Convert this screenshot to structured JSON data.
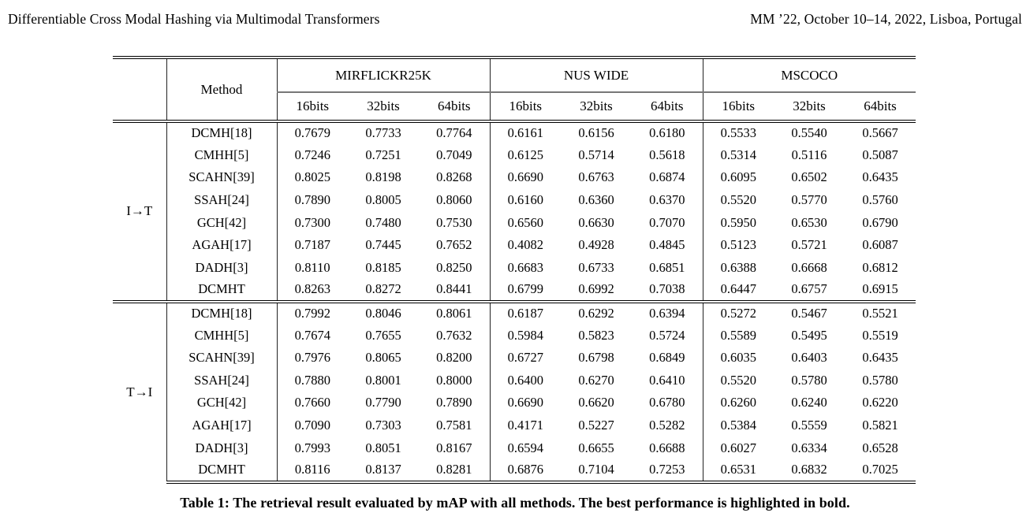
{
  "page_header": {
    "title_left": "Differentiable Cross Modal Hashing via Multimodal Transformers",
    "title_right": "MM ’22, October 10–14, 2022, Lisboa, Portugal"
  },
  "table": {
    "method_header": "Method",
    "datasets": [
      "MIRFLICKR25K",
      "NUS WIDE",
      "MSCOCO"
    ],
    "bit_labels": [
      "16bits",
      "32bits",
      "64bits"
    ],
    "sections": [
      {
        "label": "I→T",
        "rows": [
          {
            "method": "DCMH[18]",
            "values": [
              "0.7679",
              "0.7733",
              "0.7764",
              "0.6161",
              "0.6156",
              "0.6180",
              "0.5533",
              "0.5540",
              "0.5667"
            ],
            "bold": []
          },
          {
            "method": "CMHH[5]",
            "values": [
              "0.7246",
              "0.7251",
              "0.7049",
              "0.6125",
              "0.5714",
              "0.5618",
              "0.5314",
              "0.5116",
              "0.5087"
            ],
            "bold": []
          },
          {
            "method": "SCAHN[39]",
            "values": [
              "0.8025",
              "0.8198",
              "0.8268",
              "0.6690",
              "0.6763",
              "0.6874",
              "0.6095",
              "0.6502",
              "0.6435"
            ],
            "bold": []
          },
          {
            "method": "SSAH[24]",
            "values": [
              "0.7890",
              "0.8005",
              "0.8060",
              "0.6160",
              "0.6360",
              "0.6370",
              "0.5520",
              "0.5770",
              "0.5760"
            ],
            "bold": []
          },
          {
            "method": "GCH[42]",
            "values": [
              "0.7300",
              "0.7480",
              "0.7530",
              "0.6560",
              "0.6630",
              "0.7070",
              "0.5950",
              "0.6530",
              "0.6790"
            ],
            "bold": [
              5
            ]
          },
          {
            "method": "AGAH[17]",
            "values": [
              "0.7187",
              "0.7445",
              "0.7652",
              "0.4082",
              "0.4928",
              "0.4845",
              "0.5123",
              "0.5721",
              "0.6087"
            ],
            "bold": []
          },
          {
            "method": "DADH[3]",
            "values": [
              "0.8110",
              "0.8185",
              "0.8250",
              "0.6683",
              "0.6733",
              "0.6851",
              "0.6388",
              "0.6668",
              "0.6812"
            ],
            "bold": []
          },
          {
            "method": "DCMHT",
            "values": [
              "0.8263",
              "0.8272",
              "0.8441",
              "0.6799",
              "0.6992",
              "0.7038",
              "0.6447",
              "0.6757",
              "0.6915"
            ],
            "bold": [
              0,
              1,
              2,
              3,
              4,
              6,
              7,
              8
            ]
          }
        ]
      },
      {
        "label": "T→I",
        "rows": [
          {
            "method": "DCMH[18]",
            "values": [
              "0.7992",
              "0.8046",
              "0.8061",
              "0.6187",
              "0.6292",
              "0.6394",
              "0.5272",
              "0.5467",
              "0.5521"
            ],
            "bold": []
          },
          {
            "method": "CMHH[5]",
            "values": [
              "0.7674",
              "0.7655",
              "0.7632",
              "0.5984",
              "0.5823",
              "0.5724",
              "0.5589",
              "0.5495",
              "0.5519"
            ],
            "bold": []
          },
          {
            "method": "SCAHN[39]",
            "values": [
              "0.7976",
              "0.8065",
              "0.8200",
              "0.6727",
              "0.6798",
              "0.6849",
              "0.6035",
              "0.6403",
              "0.6435"
            ],
            "bold": []
          },
          {
            "method": "SSAH[24]",
            "values": [
              "0.7880",
              "0.8001",
              "0.8000",
              "0.6400",
              "0.6270",
              "0.6410",
              "0.5520",
              "0.5780",
              "0.5780"
            ],
            "bold": []
          },
          {
            "method": "GCH[42]",
            "values": [
              "0.7660",
              "0.7790",
              "0.7890",
              "0.6690",
              "0.6620",
              "0.6780",
              "0.6260",
              "0.6240",
              "0.6220"
            ],
            "bold": []
          },
          {
            "method": "AGAH[17]",
            "values": [
              "0.7090",
              "0.7303",
              "0.7581",
              "0.4171",
              "0.5227",
              "0.5282",
              "0.5384",
              "0.5559",
              "0.5821"
            ],
            "bold": []
          },
          {
            "method": "DADH[3]",
            "values": [
              "0.7993",
              "0.8051",
              "0.8167",
              "0.6594",
              "0.6655",
              "0.6688",
              "0.6027",
              "0.6334",
              "0.6528"
            ],
            "bold": []
          },
          {
            "method": "DCMHT",
            "values": [
              "0.8116",
              "0.8137",
              "0.8281",
              "0.6876",
              "0.7104",
              "0.7253",
              "0.6531",
              "0.6832",
              "0.7025"
            ],
            "bold": [
              0,
              1,
              2,
              3,
              4,
              5,
              6,
              7,
              8
            ]
          }
        ]
      }
    ]
  },
  "caption": "Table 1: The retrieval result evaluated by mAP with all methods. The best performance is highlighted in bold."
}
